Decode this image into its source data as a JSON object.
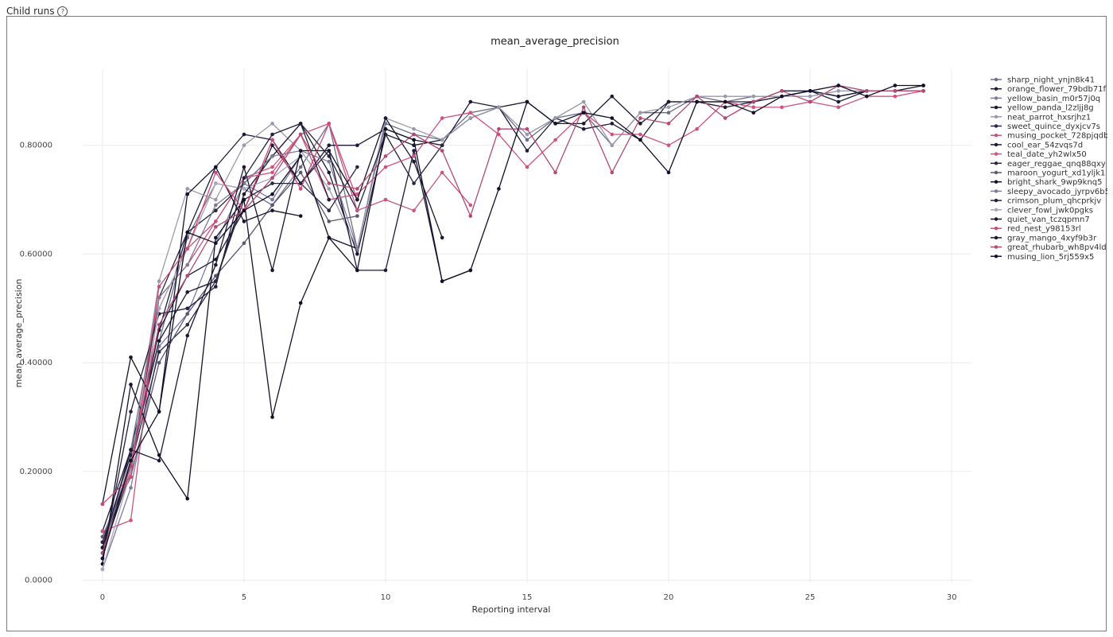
{
  "header": {
    "title": "Child runs",
    "help_icon": "question-circle-icon"
  },
  "chart_data": {
    "type": "line",
    "title": "mean_average_precision",
    "xlabel": "Reporting interval",
    "ylabel": "mean_average_precision",
    "xlim": [
      -0.7,
      30.7
    ],
    "ylim": [
      -0.005,
      0.94
    ],
    "xticks": [
      0,
      5,
      10,
      15,
      20,
      25,
      30
    ],
    "yticks": [
      0,
      0.2,
      0.4,
      0.6,
      0.8
    ],
    "ytick_labels": [
      "0.0000",
      "0.20000",
      "0.40000",
      "0.60000",
      "0.80000"
    ],
    "grid": true,
    "legend_position": "right",
    "series": [
      {
        "name": "sharp_night_ynjn8k41",
        "color": "#6b6e8a",
        "y": [
          0.06,
          0.22,
          0.44,
          0.63,
          0.73,
          0.72,
          0.69,
          0.76,
          0.84,
          0.61,
          0.84,
          0.82,
          0.81,
          0.86,
          0.87,
          0.81,
          0.85,
          0.86,
          0.8,
          0.86,
          0.86,
          0.89,
          0.88,
          0.89,
          0.89,
          0.9,
          0.89,
          0.9,
          0.9,
          0.9
        ]
      },
      {
        "name": "orange_flower_79bdb71f",
        "color": "#1c1a3b",
        "y": [
          0.09,
          0.24,
          0.46,
          0.64,
          0.76,
          0.82,
          0.81,
          0.73,
          0.8,
          0.8,
          0.83,
          0.81,
          0.8,
          0.88,
          0.87,
          0.79,
          0.85,
          0.83,
          0.84,
          0.81,
          0.88,
          0.88,
          0.88,
          0.88,
          0.9,
          0.9,
          0.88,
          0.9,
          0.9,
          0.9
        ]
      },
      {
        "name": "yellow_basin_m0r57j0q",
        "color": "#7e7aa8",
        "y": [
          0.02,
          0.17,
          0.43,
          0.49,
          0.62,
          0.73,
          0.7,
          0.78
        ]
      },
      {
        "name": "yellow_panda_l2zljj8g",
        "color": "#1a1830",
        "y": [
          0.07,
          0.23,
          0.44,
          0.53,
          0.55,
          0.71,
          0.78,
          0.84,
          0.75,
          0.6,
          0.82,
          0.8,
          0.81,
          0.85,
          0.87,
          0.88,
          0.84,
          0.84,
          0.89,
          0.84,
          0.88,
          0.88,
          0.87,
          0.88,
          0.89,
          0.9,
          0.89,
          0.9,
          0.9,
          0.91
        ]
      },
      {
        "name": "neat_parrot_hxsrjhz1",
        "color": "#9b9aad",
        "y": [
          0.08,
          0.21,
          0.55,
          0.72,
          0.7,
          0.8,
          0.84,
          0.79,
          0.72,
          0.61,
          0.85,
          0.83,
          0.81,
          0.85,
          0.87,
          0.82,
          0.85,
          0.88,
          0.8,
          0.86,
          0.87,
          0.89,
          0.89,
          0.89,
          0.89,
          0.89,
          0.9,
          0.9,
          0.9,
          0.9
        ]
      },
      {
        "name": "sweet_quince_dyxjcv7s",
        "color": "#2a2540",
        "y": [
          0.05,
          0.2,
          0.52,
          0.64,
          0.68,
          0.73,
          0.78,
          0.84,
          0.78,
          0.68,
          0.82,
          0.73,
          0.8
        ]
      },
      {
        "name": "musing_pocket_728pjqdb",
        "color": "#c8557a",
        "y": [
          0.07,
          0.2,
          0.5,
          0.61,
          0.66,
          0.74,
          0.76,
          0.82,
          0.84,
          0.68,
          0.7,
          0.68,
          0.75,
          0.69
        ]
      },
      {
        "name": "cool_ear_54zvqs7d",
        "color": "#1c1a3b",
        "y": [
          0.06,
          0.21,
          0.46,
          0.56,
          0.59,
          0.68,
          0.8,
          0.73,
          0.79,
          0.57,
          0.57,
          0.79,
          0.55,
          0.57
        ]
      },
      {
        "name": "teal_date_yh2wlx50",
        "color": "#d0527e",
        "y": [
          0.09,
          0.11,
          0.52,
          0.58,
          0.66,
          0.74,
          0.75,
          0.82,
          0.7,
          0.71,
          0.76,
          0.78,
          0.85,
          0.86,
          0.82,
          0.76,
          0.81,
          0.86,
          0.82,
          0.82,
          0.8,
          0.83,
          0.88,
          0.87,
          0.87,
          0.88,
          0.87,
          0.89,
          0.89,
          0.9
        ]
      },
      {
        "name": "eager_reggae_qnq88qxy",
        "color": "#2a2540",
        "y": [
          0.07,
          0.21,
          0.42,
          0.47,
          0.55,
          0.7,
          0.73,
          0.73,
          0.68,
          0.76
        ]
      },
      {
        "name": "maroon_yogurt_xd1yljk1",
        "color": "#5c5670",
        "y": [
          0.08,
          0.19,
          0.4,
          0.49,
          0.56,
          0.62,
          0.69,
          0.75,
          0.66,
          0.67
        ]
      },
      {
        "name": "bright_shark_9wp9knq5",
        "color": "#13112b",
        "y": [
          0.03,
          0.36,
          0.23,
          0.15,
          0.63,
          0.7,
          0.3,
          0.51,
          0.63,
          0.61
        ]
      },
      {
        "name": "sleepy_avocado_jyrpv6b5",
        "color": "#7f7a97",
        "y": [
          0.05,
          0.24,
          0.52,
          0.58,
          0.69,
          0.73,
          0.78,
          0.79,
          0.77,
          0.61
        ]
      },
      {
        "name": "crimson_plum_qhcprkjv",
        "color": "#231f3c",
        "y": [
          0.04,
          0.31,
          0.49,
          0.5,
          0.54,
          0.74,
          0.82,
          0.84,
          0.7
        ]
      },
      {
        "name": "clever_fowl_jwk0pgks",
        "color": "#a8a6b8",
        "y": [
          0.02,
          0.2,
          0.5,
          0.61,
          0.73,
          0.72,
          0.74,
          0.78
        ]
      },
      {
        "name": "quiet_van_tczqpmn7",
        "color": "#14122c",
        "y": [
          0.14,
          0.41,
          0.31,
          0.71,
          0.76,
          0.66,
          0.68,
          0.67
        ]
      },
      {
        "name": "red_nest_y98153rl",
        "color": "#d14a73",
        "y": [
          0.14,
          0.19,
          0.54,
          0.61,
          0.75,
          0.68,
          0.81,
          0.72,
          0.84,
          0.7
        ]
      },
      {
        "name": "gray_mango_4xyf9b3r",
        "color": "#1a1830",
        "y": [
          0.06,
          0.24,
          0.22,
          0.45,
          0.58,
          0.76,
          0.57,
          0.79,
          0.79,
          0.7,
          0.85,
          0.77,
          0.63
        ]
      },
      {
        "name": "great_rhubarb_wh8pv4ld",
        "color": "#b24a72",
        "y": [
          0.05,
          0.21,
          0.47,
          0.56,
          0.65,
          0.68,
          0.74,
          0.82,
          0.73,
          0.72,
          0.78,
          0.82,
          0.79,
          0.67,
          0.83,
          0.83,
          0.75,
          0.87,
          0.75,
          0.85,
          0.84,
          0.89,
          0.85,
          0.88,
          0.9,
          0.88,
          0.91,
          0.9,
          0.9,
          0.9
        ]
      },
      {
        "name": "musing_lion_5rj559x5",
        "color": "#111028",
        "y": [
          0.04,
          0.22,
          0.31,
          0.64,
          0.62,
          0.68,
          0.71,
          0.78,
          0.63,
          0.57,
          0.83,
          0.81,
          0.55,
          0.57,
          0.72,
          0.88,
          0.84,
          0.86,
          0.85,
          0.81,
          0.75,
          0.88,
          0.88,
          0.86,
          0.89,
          0.9,
          0.91,
          0.89,
          0.91,
          0.91
        ]
      }
    ]
  }
}
